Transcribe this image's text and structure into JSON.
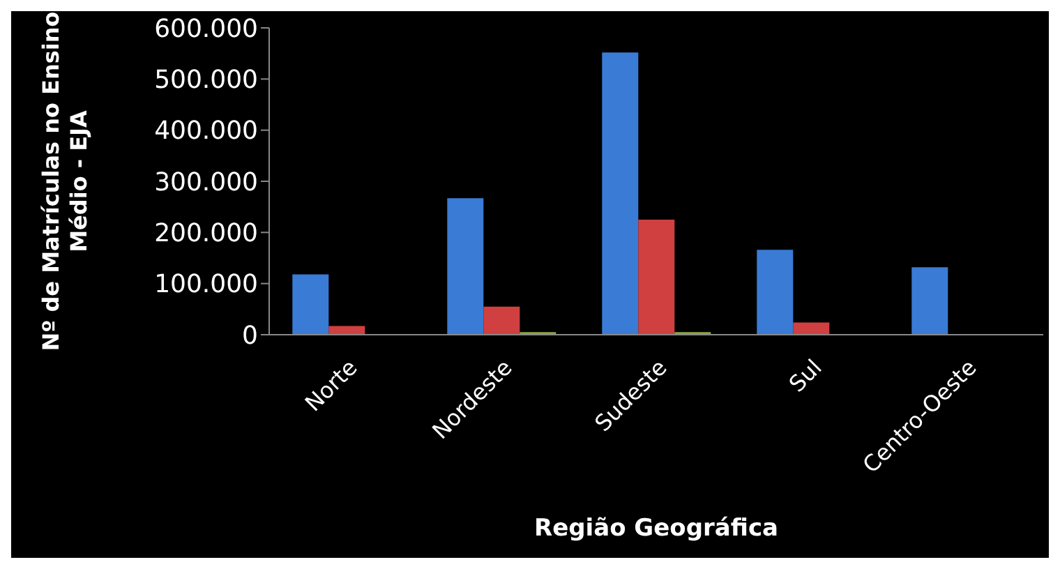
{
  "chart_data": {
    "type": "bar",
    "xlabel": "Região Geográfica",
    "ylabel": "Nº de Matrículas no Ensino Médio - EJA",
    "categories": [
      "Norte",
      "Nordeste",
      "Sudeste",
      "Sul",
      "Centro-Oeste"
    ],
    "series": [
      {
        "color": "#3a7bd5",
        "values": [
          118000,
          267000,
          552000,
          166000,
          132000
        ]
      },
      {
        "color": "#d04040",
        "values": [
          17000,
          55000,
          225000,
          24000,
          null
        ]
      },
      {
        "color": "#8aa83c",
        "values": [
          null,
          5000,
          5000,
          null,
          null
        ]
      }
    ],
    "ylim": [
      0,
      600000
    ],
    "yticks": [
      {
        "value": 0,
        "label": "0"
      },
      {
        "value": 100000,
        "label": "100.000"
      },
      {
        "value": 200000,
        "label": "200.000"
      },
      {
        "value": 300000,
        "label": "300.000"
      },
      {
        "value": 400000,
        "label": "400.000"
      },
      {
        "value": 500000,
        "label": "500.000"
      },
      {
        "value": 600000,
        "label": "600.000"
      }
    ],
    "grid": false,
    "legend": false
  }
}
